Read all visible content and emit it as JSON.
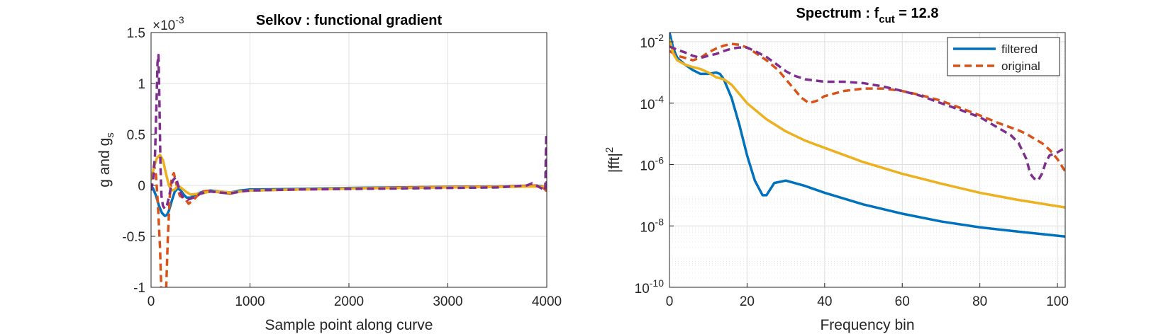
{
  "chart_data": [
    {
      "type": "line",
      "title": "Selkov : functional gradient",
      "xlabel": "Sample point along curve",
      "ylabel": "g and g",
      "ylabel_sub": "s",
      "xlim": [
        0,
        4000
      ],
      "ylim": [
        -1,
        1.5
      ],
      "y_multiplier": "×10",
      "y_multiplier_exp": "-3",
      "xticks": [
        0,
        1000,
        2000,
        3000,
        4000
      ],
      "xtick_labels": [
        "0",
        "1000",
        "2000",
        "3000",
        "4000"
      ],
      "yticks": [
        -1,
        -0.5,
        0,
        0.5,
        1,
        1.5
      ],
      "ytick_labels": [
        "-1",
        "-0.5",
        "0",
        "0.5",
        "1",
        "1.5"
      ],
      "grid": true,
      "series": [
        {
          "color": "#0072BD",
          "dash": "solid",
          "x": [
            0,
            20,
            50,
            80,
            110,
            140,
            160,
            180,
            210,
            240,
            270,
            300,
            330,
            360,
            400,
            450,
            500,
            600,
            700,
            800,
            900,
            1000,
            1500,
            2000,
            2500,
            3000,
            3500,
            3950,
            3990,
            4000
          ],
          "y": [
            0,
            -0.03,
            -0.1,
            -0.2,
            -0.27,
            -0.3,
            -0.29,
            -0.25,
            -0.15,
            -0.06,
            -0.03,
            -0.05,
            -0.09,
            -0.12,
            -0.12,
            -0.09,
            -0.07,
            -0.05,
            -0.06,
            -0.07,
            -0.05,
            -0.04,
            -0.035,
            -0.025,
            -0.02,
            -0.015,
            -0.01,
            -0.005,
            -0.03,
            0
          ]
        },
        {
          "color": "#D95319",
          "dash": "dashed",
          "x": [
            0,
            15,
            30,
            50,
            70,
            90,
            110,
            130,
            150,
            170,
            190,
            210,
            230,
            260,
            290,
            320,
            350,
            380,
            420,
            470,
            520,
            600,
            700,
            800,
            900,
            1000,
            1500,
            2000,
            2500,
            3000,
            3500,
            3950,
            3990,
            4000
          ],
          "y": [
            -0.05,
            0.1,
            0.2,
            0.1,
            -0.2,
            -0.6,
            -1.2,
            -1.5,
            -1.1,
            -0.5,
            -0.1,
            0.08,
            0.12,
            0.0,
            -0.1,
            -0.12,
            -0.14,
            -0.18,
            -0.15,
            -0.1,
            -0.06,
            -0.05,
            -0.07,
            -0.08,
            -0.06,
            -0.05,
            -0.04,
            -0.03,
            -0.02,
            -0.015,
            -0.01,
            0.0,
            -0.05,
            0
          ]
        },
        {
          "color": "#EDB120",
          "dash": "solid",
          "x": [
            0,
            30,
            60,
            90,
            120,
            150,
            180,
            210,
            240,
            270,
            300,
            350,
            400,
            500,
            600,
            700,
            800,
            900,
            1000,
            1500,
            2000,
            2500,
            3000,
            3500,
            3950,
            4000
          ],
          "y": [
            0.05,
            0.18,
            0.27,
            0.3,
            0.25,
            0.12,
            0.0,
            -0.05,
            -0.04,
            0.0,
            -0.02,
            -0.06,
            -0.09,
            -0.08,
            -0.06,
            -0.06,
            -0.07,
            -0.06,
            -0.05,
            -0.04,
            -0.03,
            -0.025,
            -0.02,
            -0.015,
            -0.01,
            0
          ]
        },
        {
          "color": "#7E2F8E",
          "dash": "dashed",
          "x": [
            0,
            20,
            40,
            55,
            65,
            75,
            85,
            95,
            105,
            120,
            140,
            160,
            180,
            200,
            220,
            250,
            280,
            310,
            340,
            370,
            400,
            450,
            500,
            600,
            700,
            800,
            900,
            1000,
            1500,
            2000,
            2500,
            3000,
            3500,
            3800,
            3850,
            3950,
            3985,
            3990,
            3995,
            4000
          ],
          "y": [
            -0.05,
            0.05,
            0.3,
            0.8,
            1.2,
            1.28,
            0.8,
            0.2,
            -0.1,
            -0.2,
            -0.23,
            -0.2,
            -0.12,
            -0.02,
            0.05,
            0.08,
            -0.02,
            -0.1,
            -0.13,
            -0.14,
            -0.13,
            -0.11,
            -0.08,
            -0.06,
            -0.07,
            -0.08,
            -0.06,
            -0.05,
            -0.04,
            -0.035,
            -0.03,
            -0.025,
            -0.02,
            0.0,
            0.02,
            -0.03,
            -0.05,
            0.3,
            0.5,
            0.0
          ]
        }
      ]
    },
    {
      "type": "line",
      "title": "Spectrum : f",
      "title_sub": "cut",
      "title_suffix": " = 12.8",
      "xlabel": "Frequency bin",
      "ylabel": "|fft|",
      "ylabel_sup": "2",
      "xlim": [
        0,
        102
      ],
      "ylim": [
        1e-10,
        0.02
      ],
      "yscale": "log",
      "xticks": [
        0,
        20,
        40,
        60,
        80,
        100
      ],
      "xtick_labels": [
        "0",
        "20",
        "40",
        "60",
        "80",
        "100"
      ],
      "yticks": [
        1e-10,
        1e-08,
        1e-06,
        0.0001,
        0.01
      ],
      "ytick_base": "10",
      "ytick_exps": [
        "-10",
        "-8",
        "-6",
        "-4",
        "-2"
      ],
      "grid": true,
      "legend_position": "top-right",
      "legend": [
        {
          "label": "filtered",
          "color": "#0072BD",
          "dash": "solid"
        },
        {
          "label": "original",
          "color": "#D95319",
          "dash": "dashed"
        }
      ],
      "series": [
        {
          "color": "#0072BD",
          "dash": "solid",
          "x": [
            0,
            1,
            2,
            4,
            6,
            8,
            10,
            12,
            13,
            14,
            16,
            18,
            20,
            22,
            24,
            25,
            27,
            30,
            35,
            40,
            50,
            60,
            70,
            80,
            90,
            102
          ],
          "y": [
            0.02,
            0.006,
            0.003,
            0.0018,
            0.0012,
            0.0009,
            0.0009,
            0.001,
            0.0009,
            0.0006,
            0.00015,
            2e-05,
            2e-06,
            3e-07,
            1e-07,
            1e-07,
            2.5e-07,
            3e-07,
            2e-07,
            1.2e-07,
            5e-08,
            2.5e-08,
            1.4e-08,
            9e-09,
            6.5e-09,
            4.5e-09
          ]
        },
        {
          "color": "#D95319",
          "dash": "dashed",
          "x": [
            0,
            2,
            4,
            6,
            8,
            10,
            12,
            14,
            16,
            18,
            20,
            22,
            25,
            28,
            30,
            32,
            34,
            36,
            38,
            40,
            45,
            50,
            55,
            60,
            65,
            70,
            75,
            80,
            85,
            88,
            90,
            92,
            94,
            96,
            98,
            100,
            102
          ],
          "y": [
            0.005,
            0.0035,
            0.003,
            0.0025,
            0.003,
            0.0045,
            0.006,
            0.0075,
            0.0085,
            0.008,
            0.0065,
            0.0045,
            0.0025,
            0.0012,
            0.0006,
            0.0003,
            0.00015,
            0.0001,
            0.00012,
            0.00017,
            0.00025,
            0.0003,
            0.0003,
            0.00025,
            0.00018,
            0.00012,
            7e-05,
            4e-05,
            2.2e-05,
            1.6e-05,
            1.3e-05,
            1e-05,
            7e-06,
            5e-06,
            3e-06,
            1.5e-06,
            6e-07
          ]
        },
        {
          "color": "#EDB120",
          "dash": "solid",
          "x": [
            0,
            1,
            2,
            4,
            6,
            8,
            10,
            12,
            14,
            16,
            18,
            20,
            25,
            30,
            35,
            40,
            50,
            60,
            70,
            80,
            90,
            102
          ],
          "y": [
            0.012,
            0.004,
            0.0025,
            0.0018,
            0.0015,
            0.0013,
            0.001,
            0.0007,
            0.0006,
            0.0004,
            0.0002,
            0.0001,
            3e-05,
            1.2e-05,
            6e-06,
            3.5e-06,
            1.2e-06,
            5e-07,
            2.4e-07,
            1.2e-07,
            7e-08,
            4e-08
          ]
        },
        {
          "color": "#7E2F8E",
          "dash": "dashed",
          "x": [
            0,
            2,
            4,
            6,
            8,
            10,
            12,
            14,
            16,
            18,
            20,
            22,
            25,
            28,
            30,
            32,
            35,
            40,
            45,
            50,
            55,
            60,
            65,
            70,
            75,
            80,
            82,
            85,
            88,
            90,
            92,
            93,
            94,
            95,
            96,
            97,
            98,
            100,
            102
          ],
          "y": [
            0.007,
            0.0055,
            0.0045,
            0.0035,
            0.003,
            0.0035,
            0.004,
            0.005,
            0.006,
            0.0065,
            0.0065,
            0.005,
            0.0032,
            0.0017,
            0.0011,
            0.0008,
            0.0006,
            0.0005,
            0.0005,
            0.00045,
            0.00035,
            0.00025,
            0.00017,
            0.0001,
            6e-05,
            3.5e-05,
            2.5e-05,
            1.5e-05,
            9e-06,
            5e-06,
            1.5e-06,
            5e-07,
            3.5e-07,
            3e-07,
            5e-07,
            1.2e-06,
            2e-06,
            2.5e-06,
            3.5e-06
          ]
        }
      ]
    }
  ]
}
